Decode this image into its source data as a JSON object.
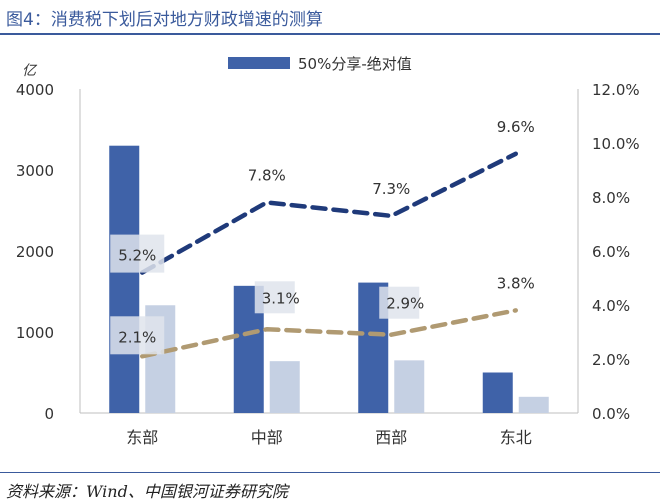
{
  "header": {
    "title": "图4：消费税下划后对地方财政增速的测算"
  },
  "footer": {
    "source": "资料来源：Wind、中国银河证券研究院"
  },
  "colors": {
    "bar_primary": "#3f62a8",
    "bar_secondary": "#c5d0e3",
    "line_navy": "#1f3a7a",
    "line_tan": "#b09a72",
    "axis_text": "#333333",
    "title": "#3a5a9c"
  },
  "chart_data": {
    "type": "bar",
    "categories": [
      "东部",
      "中部",
      "西部",
      "东北"
    ],
    "y_left": {
      "unit_label": "亿",
      "ylim": [
        0,
        4000
      ],
      "ticks": [
        "0",
        "1000",
        "2000",
        "3000",
        "4000"
      ]
    },
    "y_right": {
      "ylim": [
        0,
        12
      ],
      "ticks": [
        "0.0%",
        "2.0%",
        "4.0%",
        "6.0%",
        "8.0%",
        "10.0%",
        "12.0%"
      ]
    },
    "legend": {
      "position": "top-center",
      "entries": [
        "50%分享-绝对值"
      ]
    },
    "bar_series": [
      {
        "name": "50%分享-绝对值",
        "axis": "left",
        "values": [
          3300,
          1570,
          1610,
          500
        ]
      },
      {
        "name": "",
        "axis": "left",
        "values": [
          1330,
          640,
          650,
          200
        ]
      }
    ],
    "line_series": [
      {
        "name": "",
        "axis": "right",
        "values": [
          5.2,
          7.8,
          7.3,
          9.6
        ],
        "labels": [
          "5.2%",
          "7.8%",
          "7.3%",
          "9.6%"
        ]
      },
      {
        "name": "",
        "axis": "right",
        "values": [
          2.1,
          3.1,
          2.9,
          3.8
        ],
        "labels": [
          "2.1%",
          "3.1%",
          "2.9%",
          "3.8%"
        ]
      }
    ]
  }
}
